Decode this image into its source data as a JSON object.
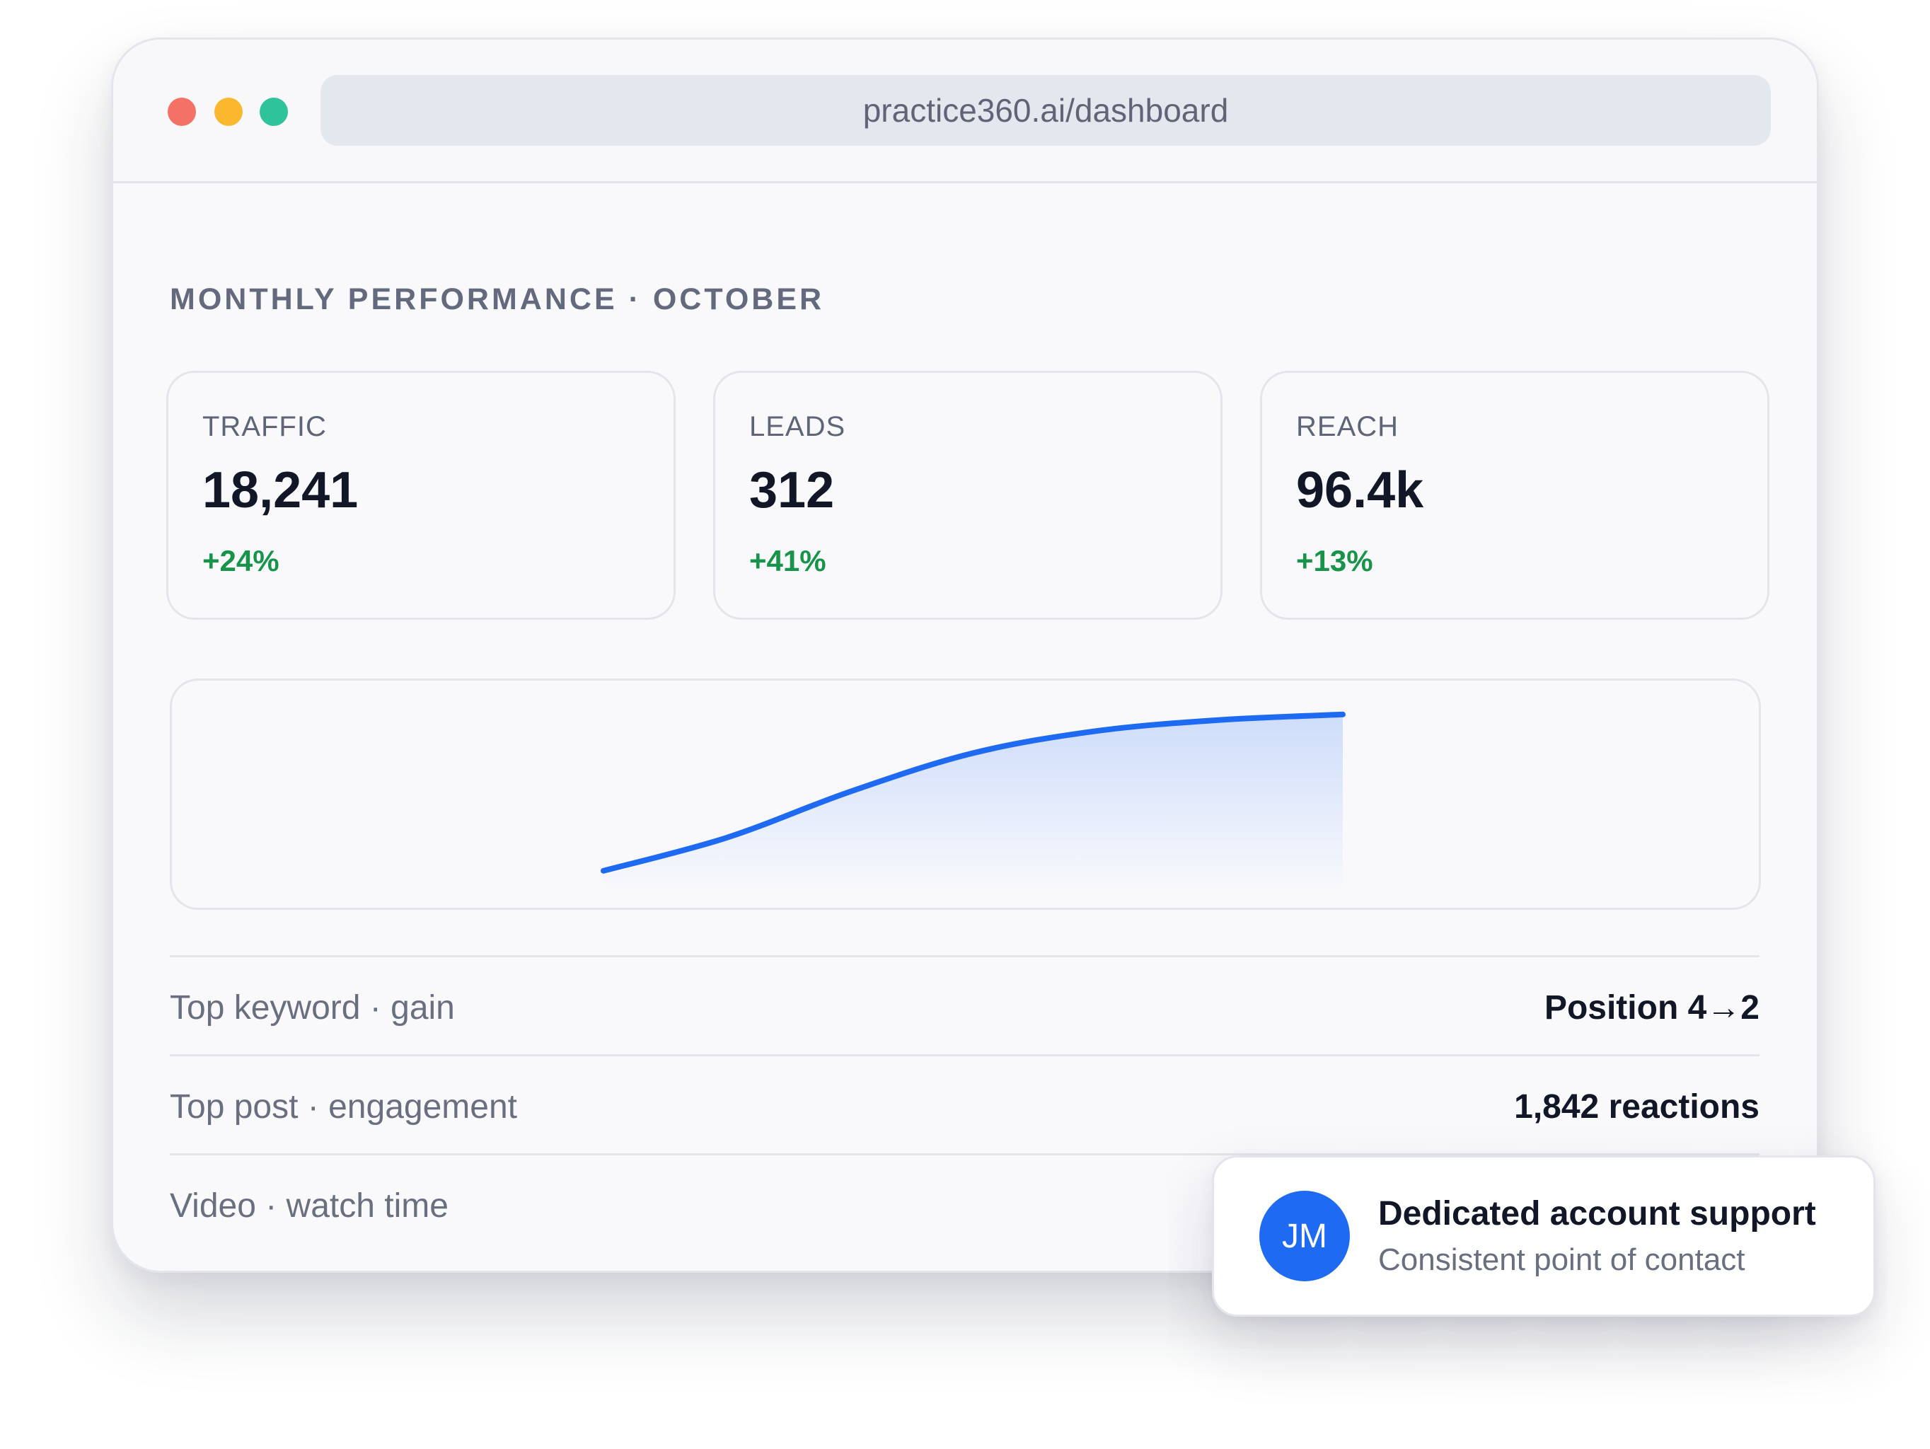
{
  "browser": {
    "url": "practice360.ai/dashboard",
    "controls": {
      "close_color": "#f47265",
      "minimize_color": "#fbb82e",
      "maximize_color": "#2ec39a"
    }
  },
  "dashboard": {
    "title": "MONTHLY PERFORMANCE · OCTOBER",
    "stats": [
      {
        "label": "TRAFFIC",
        "value": "18,241",
        "change": "+24%"
      },
      {
        "label": "LEADS",
        "value": "312",
        "change": "+41%"
      },
      {
        "label": "REACH",
        "value": "96.4k",
        "change": "+13%"
      }
    ],
    "accent_color": "#1f6af3",
    "positive_color": "#17944a",
    "metrics": [
      {
        "label": "Top keyword · gain",
        "value": "Position 4→2"
      },
      {
        "label": "Top post · engagement",
        "value": "1,842 reactions"
      },
      {
        "label": "Video · watch time",
        "value": ""
      }
    ]
  },
  "chart_data": {
    "type": "area",
    "x": [
      0,
      1,
      2,
      3,
      4,
      5,
      6
    ],
    "values": [
      12,
      30,
      55,
      76,
      88,
      94,
      97
    ],
    "ylim": [
      0,
      100
    ],
    "title": "",
    "xlabel": "",
    "ylabel": ""
  },
  "support_toast": {
    "avatar_initials": "JM",
    "title": "Dedicated account support",
    "subtitle": "Consistent point of contact"
  }
}
